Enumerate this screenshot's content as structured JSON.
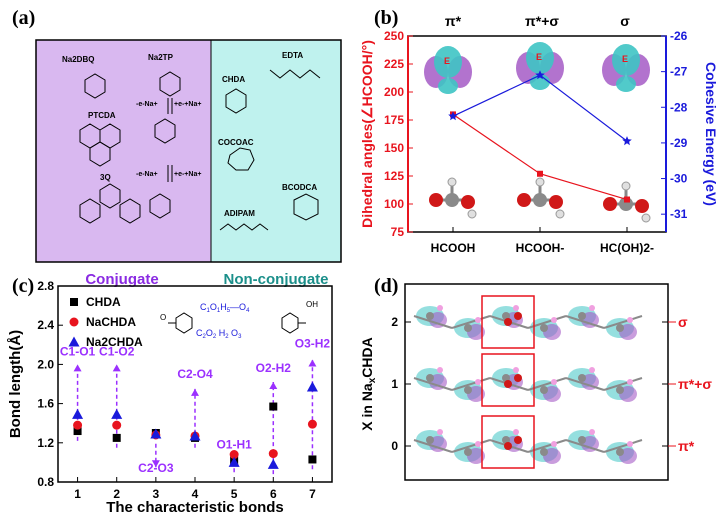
{
  "colors": {
    "conjugate_bg": "#d9b8f0",
    "nonconjugate_bg": "#bff2ee",
    "conjugate_text": "#8a2be2",
    "nonconjugate_text": "#1b8f8a",
    "red": "#e8141e",
    "blue": "#1a1adb",
    "purple_label": "#9b30ff",
    "orbital_cyan": "#3ec4c4",
    "orbital_purple": "#a55bc6"
  },
  "panel_a": {
    "label": "(a)",
    "molecules_conjugate": [
      "Na2DBQ",
      "Na2TP",
      "PTCDA",
      "3Q"
    ],
    "molecules_nonconjugate": [
      "CHDA",
      "EDTA",
      "COCOAC",
      "BCODCA",
      "ADIPAM"
    ],
    "reaction_top_left": "-e-Na+",
    "reaction_top_right": "+e-+Na+",
    "reaction_bottom_left": "-e-Na+",
    "reaction_bottom_right": "+e-+Na+",
    "conjugate_label": "Conjugate",
    "nonconjugate_label": "Non-conjugate"
  },
  "panel_b": {
    "label": "(b)",
    "top_labels": [
      "π*",
      "π*+σ",
      "σ"
    ],
    "orbital_labels": [
      "E",
      "E",
      "E"
    ],
    "icon": "molecule-ball-stick-icon"
  },
  "panel_c": {
    "label": "(c)",
    "bond_labels": [
      "C1-O1",
      "C1-O2",
      "C2-O3",
      "C2-O4",
      "O1-H1",
      "O2-H2",
      "O3-H2"
    ],
    "structure_labels": [
      "O",
      "1",
      "5",
      "H",
      "1",
      "O",
      "4",
      "4",
      "O",
      "C",
      "1",
      "2",
      "O",
      "2",
      "6",
      "H",
      "2",
      "7",
      "O",
      "3",
      "3",
      "OH"
    ]
  },
  "panel_d": {
    "label": "(d)",
    "ylabel": "X in NaxCHDA",
    "ytick_labels": [
      "0",
      "1",
      "2"
    ],
    "right_labels": [
      "σ",
      "π*+σ",
      "π*"
    ]
  },
  "chart_data": [
    {
      "type": "line",
      "panel": "(b)",
      "categories": [
        "HCOOH",
        "HCOOH-",
        "HC(OH)2-"
      ],
      "ylabel": "Dihedral angles(∠HCOOH/°)",
      "ylabel2": "Cohesive Energy (eV)",
      "ylim": [
        75,
        250
      ],
      "yticks": [
        75,
        100,
        125,
        150,
        175,
        200,
        225,
        250
      ],
      "ylim2": [
        -31.5,
        -26
      ],
      "yticks2": [
        -31,
        -30,
        -29,
        -28,
        -27,
        -26
      ],
      "series": [
        {
          "axis": "left",
          "color": "#e8141e",
          "marker": "square",
          "values": [
            180,
            127,
            104
          ]
        },
        {
          "axis": "right",
          "color": "#1a1adb",
          "marker": "star",
          "values": [
            -28.25,
            -27.1,
            -28.95
          ]
        }
      ]
    },
    {
      "type": "scatter",
      "panel": "(c)",
      "xlabel": "The characteristic bonds",
      "ylabel": "Bond length(Å)",
      "x": [
        1,
        2,
        3,
        4,
        5,
        6,
        7
      ],
      "xlim": [
        0.5,
        7.5
      ],
      "ylim": [
        0.8,
        2.8
      ],
      "yticks": [
        0.8,
        1.2,
        1.6,
        2.0,
        2.4,
        2.8
      ],
      "ytick_labels": [
        "0.8",
        "1.2",
        "1.6",
        "2.0",
        "2.4",
        "2.8"
      ],
      "legend_position": "top-left",
      "series": [
        {
          "name": "CHDA",
          "marker": "square",
          "color": "#000000",
          "values": [
            1.32,
            1.25,
            1.3,
            1.25,
            1.02,
            1.57,
            1.03
          ]
        },
        {
          "name": "NaCHDA",
          "marker": "circle",
          "color": "#e8141e",
          "values": [
            1.38,
            1.38,
            1.28,
            1.27,
            1.08,
            1.09,
            1.39
          ]
        },
        {
          "name": "Na2CHDA",
          "marker": "triangle",
          "color": "#1a1adb",
          "values": [
            1.49,
            1.49,
            1.29,
            1.27,
            1.0,
            0.98,
            1.77
          ]
        }
      ]
    }
  ]
}
